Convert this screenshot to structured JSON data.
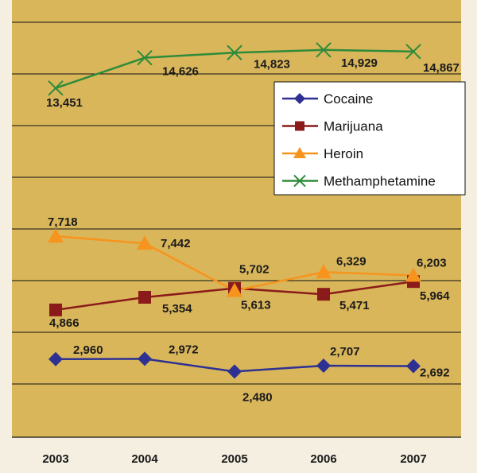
{
  "colors": {
    "plot_background": "#d9b65a",
    "page_background": "#f4efe0",
    "gridline": "#111111",
    "legend_background": "#ffffff"
  },
  "chart_data": {
    "type": "line",
    "x": [
      "2003",
      "2004",
      "2005",
      "2006",
      "2007"
    ],
    "ylim": [
      0,
      16000
    ],
    "grid": true,
    "legend_position": "top-right",
    "series": [
      {
        "name": "Cocaine",
        "marker": "diamond",
        "color": "#2e3192",
        "values": [
          2960,
          2972,
          2480,
          2707,
          2692
        ],
        "labels": [
          "2,960",
          "2,972",
          "2,480",
          "2,707",
          "2,692"
        ]
      },
      {
        "name": "Marijuana",
        "marker": "square",
        "color": "#8b1a1a",
        "values": [
          4866,
          5354,
          5702,
          5471,
          5964
        ],
        "labels": [
          "4,866",
          "5,354",
          "5,702",
          "5,471",
          "5,964"
        ]
      },
      {
        "name": "Heroin",
        "marker": "triangle",
        "color": "#f7941d",
        "values": [
          7718,
          7442,
          5613,
          6329,
          6203
        ],
        "labels": [
          "7,718",
          "7,442",
          "5,613",
          "6,329",
          "6,203"
        ]
      },
      {
        "name": "Methamphetamine",
        "marker": "x",
        "color": "#2e8b3a",
        "values": [
          13451,
          14626,
          14823,
          14929,
          14867
        ],
        "labels": [
          "13,451",
          "14,626",
          "14,823",
          "14,929",
          "14,867"
        ]
      }
    ]
  }
}
